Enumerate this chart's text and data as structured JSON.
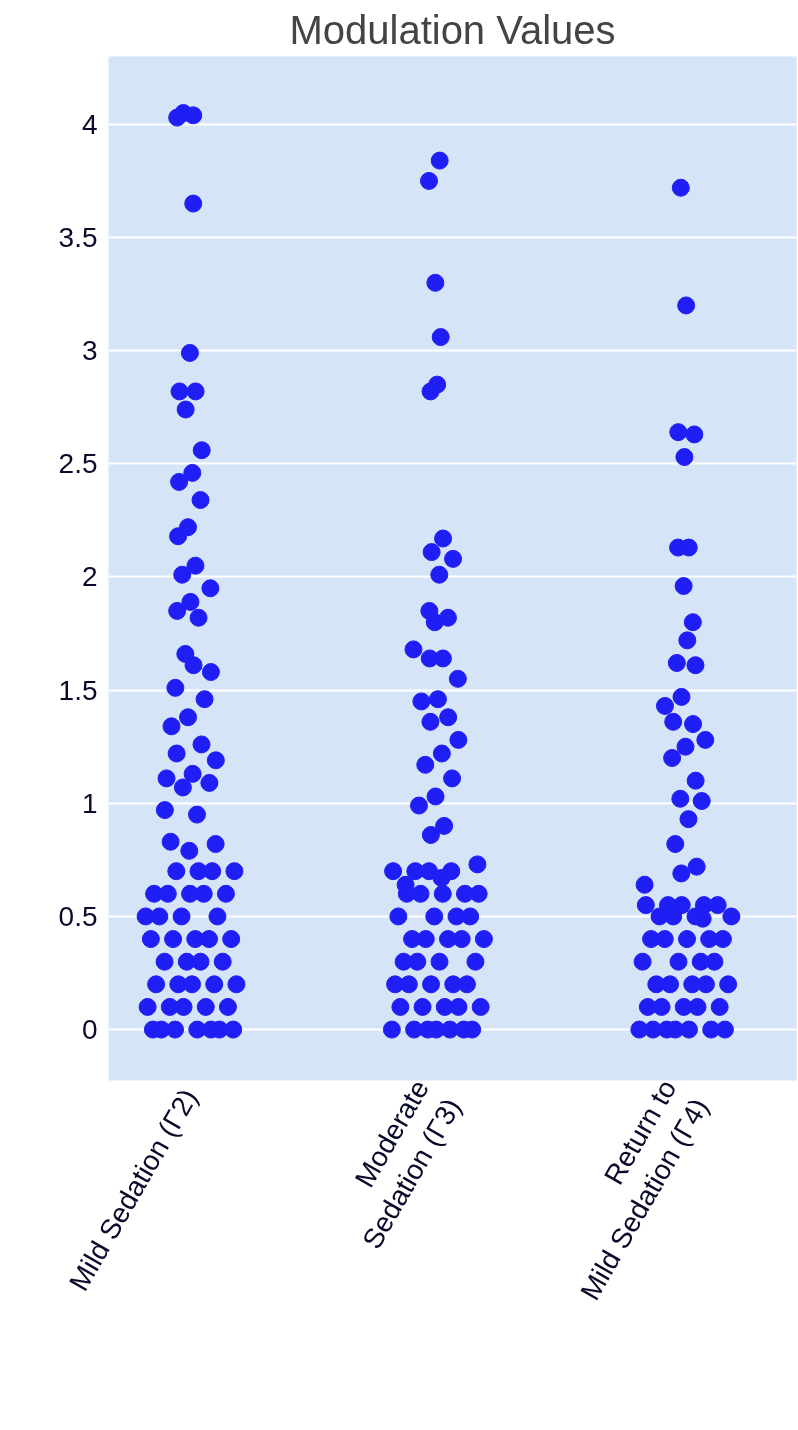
{
  "chart_data": {
    "type": "scatter",
    "title": "Modulation Values",
    "categories": [
      "Mild Sedation (Γ2)",
      "Moderate\nSedation (Γ3)",
      "Return to\nMild Sedation (Γ4)"
    ],
    "ylim": [
      -0.225,
      4.3
    ],
    "yticks": [
      0,
      0.5,
      1,
      1.5,
      2,
      2.5,
      3,
      3.5,
      4
    ],
    "grid": "y",
    "marker": "circle",
    "series": [
      {
        "color": "#1f1ff5",
        "x": [
          "Mild Sedation (Γ2)",
          "Mild Sedation (Γ2)",
          "Mild Sedation (Γ2)",
          "Mild Sedation (Γ2)",
          "Mild Sedation (Γ2)",
          "Mild Sedation (Γ2)",
          "Mild Sedation (Γ2)",
          "Mild Sedation (Γ2)",
          "Mild Sedation (Γ2)",
          "Mild Sedation (Γ2)",
          "Mild Sedation (Γ2)",
          "Mild Sedation (Γ2)",
          "Mild Sedation (Γ2)",
          "Mild Sedation (Γ2)",
          "Mild Sedation (Γ2)",
          "Mild Sedation (Γ2)",
          "Mild Sedation (Γ2)",
          "Mild Sedation (Γ2)",
          "Mild Sedation (Γ2)",
          "Mild Sedation (Γ2)",
          "Mild Sedation (Γ2)",
          "Mild Sedation (Γ2)",
          "Mild Sedation (Γ2)",
          "Mild Sedation (Γ2)",
          "Mild Sedation (Γ2)",
          "Mild Sedation (Γ2)",
          "Mild Sedation (Γ2)",
          "Mild Sedation (Γ2)",
          "Mild Sedation (Γ2)",
          "Mild Sedation (Γ2)",
          "Mild Sedation (Γ2)",
          "Mild Sedation (Γ2)",
          "Mild Sedation (Γ2)",
          "Mild Sedation (Γ2)",
          "Mild Sedation (Γ2)",
          "Mild Sedation (Γ2)",
          "Mild Sedation (Γ2)",
          "Mild Sedation (Γ2)",
          "Mild Sedation (Γ2)",
          "Mild Sedation (Γ2)",
          "Mild Sedation (Γ2)",
          "Mild Sedation (Γ2)",
          "Mild Sedation (Γ2)",
          "Mild Sedation (Γ2)",
          "Mild Sedation (Γ2)",
          "Mild Sedation (Γ2)",
          "Mild Sedation (Γ2)",
          "Mild Sedation (Γ2)",
          "Mild Sedation (Γ2)",
          "Mild Sedation (Γ2)",
          "Mild Sedation (Γ2)",
          "Mild Sedation (Γ2)",
          "Mild Sedation (Γ2)",
          "Mild Sedation (Γ2)",
          "Mild Sedation (Γ2)",
          "Mild Sedation (Γ2)",
          "Mild Sedation (Γ2)",
          "Mild Sedation (Γ2)",
          "Mild Sedation (Γ2)",
          "Mild Sedation (Γ2)",
          "Mild Sedation (Γ2)",
          "Mild Sedation (Γ2)",
          "Mild Sedation (Γ2)",
          "Mild Sedation (Γ2)",
          "Mild Sedation (Γ2)",
          "Mild Sedation (Γ2)",
          "Mild Sedation (Γ2)",
          "Mild Sedation (Γ2)",
          "Mild Sedation (Γ2)",
          "Mild Sedation (Γ2)",
          "Mild Sedation (Γ2)",
          "Mild Sedation (Γ2)",
          "Mild Sedation (Γ2)",
          "Mild Sedation (Γ2)",
          "Mild Sedation (Γ2)",
          "Mild Sedation (Γ2)",
          "Mild Sedation (Γ2)",
          "Mild Sedation (Γ2)"
        ],
        "values": [
          4.03,
          4.04,
          4.05,
          3.65,
          2.99,
          2.82,
          2.82,
          2.74,
          2.56,
          2.46,
          2.42,
          2.34,
          2.22,
          2.18,
          2.05,
          2.01,
          1.95,
          1.89,
          1.85,
          1.82,
          1.66,
          1.58,
          1.61,
          1.51,
          1.46,
          1.38,
          1.34,
          1.26,
          1.22,
          1.19,
          1.13,
          1.11,
          1.09,
          1.07,
          0.97,
          0.95,
          0.83,
          0.82,
          0.79,
          0,
          0,
          0,
          0,
          0,
          0,
          0,
          0.1,
          0.1,
          0.1,
          0.1,
          0.1,
          0.2,
          0.2,
          0.2,
          0.2,
          0.2,
          0.3,
          0.3,
          0.3,
          0.3,
          0.4,
          0.4,
          0.4,
          0.4,
          0.4,
          0.5,
          0.5,
          0.5,
          0.5,
          0.6,
          0.6,
          0.6,
          0.6,
          0.6,
          0.7,
          0.7,
          0.7,
          0.7
        ]
      },
      {
        "color": "#1f1ff5",
        "x": [
          "Moderate\nSedation (Γ3)",
          "Moderate\nSedation (Γ3)",
          "Moderate\nSedation (Γ3)",
          "Moderate\nSedation (Γ3)",
          "Moderate\nSedation (Γ3)",
          "Moderate\nSedation (Γ3)",
          "Moderate\nSedation (Γ3)",
          "Moderate\nSedation (Γ3)",
          "Moderate\nSedation (Γ3)",
          "Moderate\nSedation (Γ3)",
          "Moderate\nSedation (Γ3)",
          "Moderate\nSedation (Γ3)",
          "Moderate\nSedation (Γ3)",
          "Moderate\nSedation (Γ3)",
          "Moderate\nSedation (Γ3)",
          "Moderate\nSedation (Γ3)",
          "Moderate\nSedation (Γ3)",
          "Moderate\nSedation (Γ3)",
          "Moderate\nSedation (Γ3)",
          "Moderate\nSedation (Γ3)",
          "Moderate\nSedation (Γ3)",
          "Moderate\nSedation (Γ3)",
          "Moderate\nSedation (Γ3)",
          "Moderate\nSedation (Γ3)",
          "Moderate\nSedation (Γ3)",
          "Moderate\nSedation (Γ3)",
          "Moderate\nSedation (Γ3)",
          "Moderate\nSedation (Γ3)",
          "Moderate\nSedation (Γ3)",
          "Moderate\nSedation (Γ3)",
          "Moderate\nSedation (Γ3)",
          "Moderate\nSedation (Γ3)",
          "Moderate\nSedation (Γ3)",
          "Moderate\nSedation (Γ3)",
          "Moderate\nSedation (Γ3)",
          "Moderate\nSedation (Γ3)",
          "Moderate\nSedation (Γ3)",
          "Moderate\nSedation (Γ3)",
          "Moderate\nSedation (Γ3)",
          "Moderate\nSedation (Γ3)",
          "Moderate\nSedation (Γ3)",
          "Moderate\nSedation (Γ3)",
          "Moderate\nSedation (Γ3)",
          "Moderate\nSedation (Γ3)",
          "Moderate\nSedation (Γ3)",
          "Moderate\nSedation (Γ3)",
          "Moderate\nSedation (Γ3)",
          "Moderate\nSedation (Γ3)",
          "Moderate\nSedation (Γ3)",
          "Moderate\nSedation (Γ3)",
          "Moderate\nSedation (Γ3)",
          "Moderate\nSedation (Γ3)",
          "Moderate\nSedation (Γ3)",
          "Moderate\nSedation (Γ3)",
          "Moderate\nSedation (Γ3)",
          "Moderate\nSedation (Γ3)",
          "Moderate\nSedation (Γ3)",
          "Moderate\nSedation (Γ3)",
          "Moderate\nSedation (Γ3)",
          "Moderate\nSedation (Γ3)",
          "Moderate\nSedation (Γ3)",
          "Moderate\nSedation (Γ3)",
          "Moderate\nSedation (Γ3)",
          "Moderate\nSedation (Γ3)",
          "Moderate\nSedation (Γ3)",
          "Moderate\nSedation (Γ3)",
          "Moderate\nSedation (Γ3)",
          "Moderate\nSedation (Γ3)",
          "Moderate\nSedation (Γ3)",
          "Moderate\nSedation (Γ3)",
          "Moderate\nSedation (Γ3)"
        ],
        "values": [
          3.75,
          3.84,
          3.3,
          3.06,
          2.85,
          2.82,
          2.17,
          2.11,
          2.08,
          2.01,
          1.85,
          1.82,
          1.8,
          1.68,
          1.64,
          1.64,
          1.55,
          1.46,
          1.45,
          1.38,
          1.36,
          1.28,
          1.22,
          1.17,
          1.11,
          1.03,
          0.99,
          0.9,
          0.86,
          0.73,
          0.67,
          0.64,
          0,
          0,
          0,
          0,
          0,
          0,
          0,
          0.1,
          0.1,
          0.1,
          0.1,
          0.1,
          0.2,
          0.2,
          0.2,
          0.2,
          0.2,
          0.3,
          0.3,
          0.3,
          0.3,
          0.4,
          0.4,
          0.4,
          0.4,
          0.4,
          0.5,
          0.5,
          0.5,
          0.5,
          0.6,
          0.6,
          0.6,
          0.6,
          0.6,
          0.7,
          0.7,
          0.7,
          0.7
        ]
      },
      {
        "color": "#1f1ff5",
        "x": [
          "Return to\nMild Sedation (Γ4)",
          "Return to\nMild Sedation (Γ4)",
          "Return to\nMild Sedation (Γ4)",
          "Return to\nMild Sedation (Γ4)",
          "Return to\nMild Sedation (Γ4)",
          "Return to\nMild Sedation (Γ4)",
          "Return to\nMild Sedation (Γ4)",
          "Return to\nMild Sedation (Γ4)",
          "Return to\nMild Sedation (Γ4)",
          "Return to\nMild Sedation (Γ4)",
          "Return to\nMild Sedation (Γ4)",
          "Return to\nMild Sedation (Γ4)",
          "Return to\nMild Sedation (Γ4)",
          "Return to\nMild Sedation (Γ4)",
          "Return to\nMild Sedation (Γ4)",
          "Return to\nMild Sedation (Γ4)",
          "Return to\nMild Sedation (Γ4)",
          "Return to\nMild Sedation (Γ4)",
          "Return to\nMild Sedation (Γ4)",
          "Return to\nMild Sedation (Γ4)",
          "Return to\nMild Sedation (Γ4)",
          "Return to\nMild Sedation (Γ4)",
          "Return to\nMild Sedation (Γ4)",
          "Return to\nMild Sedation (Γ4)",
          "Return to\nMild Sedation (Γ4)",
          "Return to\nMild Sedation (Γ4)",
          "Return to\nMild Sedation (Γ4)",
          "Return to\nMild Sedation (Γ4)",
          "Return to\nMild Sedation (Γ4)",
          "Return to\nMild Sedation (Γ4)",
          "Return to\nMild Sedation (Γ4)",
          "Return to\nMild Sedation (Γ4)",
          "Return to\nMild Sedation (Γ4)",
          "Return to\nMild Sedation (Γ4)",
          "Return to\nMild Sedation (Γ4)",
          "Return to\nMild Sedation (Γ4)",
          "Return to\nMild Sedation (Γ4)",
          "Return to\nMild Sedation (Γ4)",
          "Return to\nMild Sedation (Γ4)",
          "Return to\nMild Sedation (Γ4)",
          "Return to\nMild Sedation (Γ4)",
          "Return to\nMild Sedation (Γ4)",
          "Return to\nMild Sedation (Γ4)",
          "Return to\nMild Sedation (Γ4)",
          "Return to\nMild Sedation (Γ4)",
          "Return to\nMild Sedation (Γ4)",
          "Return to\nMild Sedation (Γ4)",
          "Return to\nMild Sedation (Γ4)",
          "Return to\nMild Sedation (Γ4)",
          "Return to\nMild Sedation (Γ4)",
          "Return to\nMild Sedation (Γ4)",
          "Return to\nMild Sedation (Γ4)",
          "Return to\nMild Sedation (Γ4)",
          "Return to\nMild Sedation (Γ4)",
          "Return to\nMild Sedation (Γ4)",
          "Return to\nMild Sedation (Γ4)",
          "Return to\nMild Sedation (Γ4)",
          "Return to\nMild Sedation (Γ4)",
          "Return to\nMild Sedation (Γ4)",
          "Return to\nMild Sedation (Γ4)",
          "Return to\nMild Sedation (Γ4)",
          "Return to\nMild Sedation (Γ4)",
          "Return to\nMild Sedation (Γ4)"
        ],
        "values": [
          3.72,
          3.2,
          2.64,
          2.63,
          2.53,
          2.13,
          2.13,
          1.96,
          1.8,
          1.72,
          1.62,
          1.61,
          1.47,
          1.43,
          1.35,
          1.36,
          1.28,
          1.25,
          1.2,
          1.1,
          1.02,
          1.01,
          0.93,
          0.82,
          0.72,
          0.69,
          0.64,
          0.49,
          0,
          0,
          0,
          0,
          0,
          0,
          0,
          0.1,
          0.1,
          0.1,
          0.1,
          0.1,
          0.2,
          0.2,
          0.2,
          0.2,
          0.2,
          0.3,
          0.3,
          0.3,
          0.3,
          0.4,
          0.4,
          0.4,
          0.4,
          0.4,
          0.5,
          0.5,
          0.5,
          0.5,
          0.55,
          0.55,
          0.55,
          0.55,
          0.55
        ]
      }
    ]
  }
}
